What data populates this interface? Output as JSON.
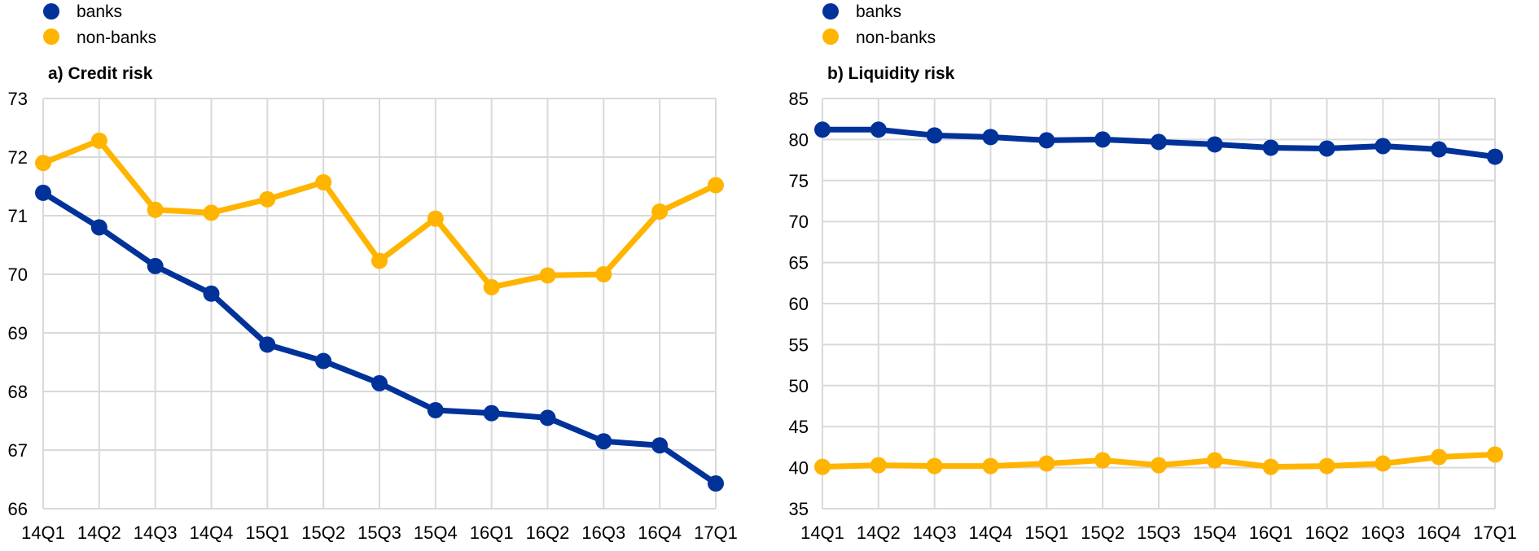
{
  "colors": {
    "banks": "#003299",
    "non_banks": "#FFB400",
    "grid": "#d9d9d9"
  },
  "chart_data": [
    {
      "type": "line",
      "title": "a) Credit risk",
      "xlabel": "",
      "ylabel": "",
      "categories": [
        "14Q1",
        "14Q2",
        "14Q3",
        "14Q4",
        "15Q1",
        "15Q2",
        "15Q3",
        "15Q4",
        "16Q1",
        "16Q2",
        "16Q3",
        "16Q4",
        "17Q1"
      ],
      "ylim": [
        66,
        73
      ],
      "yticks": [
        "66",
        "67",
        "68",
        "69",
        "70",
        "71",
        "72",
        "73"
      ],
      "grid": true,
      "legend": [
        "banks",
        "non-banks"
      ],
      "legend_position": "top-left",
      "series": [
        {
          "name": "banks",
          "values": [
            71.39,
            70.8,
            70.14,
            69.67,
            68.8,
            68.52,
            68.14,
            67.68,
            67.63,
            67.55,
            67.15,
            67.08,
            66.43
          ]
        },
        {
          "name": "non-banks",
          "values": [
            71.9,
            72.28,
            71.1,
            71.05,
            71.28,
            71.57,
            70.23,
            70.95,
            69.78,
            69.98,
            70.0,
            71.07,
            71.52
          ]
        }
      ]
    },
    {
      "type": "line",
      "title": "b) Liquidity risk",
      "xlabel": "",
      "ylabel": "",
      "categories": [
        "14Q1",
        "14Q2",
        "14Q3",
        "14Q4",
        "15Q1",
        "15Q2",
        "15Q3",
        "15Q4",
        "16Q1",
        "16Q2",
        "16Q3",
        "16Q4",
        "17Q1"
      ],
      "ylim": [
        35,
        85
      ],
      "yticks": [
        "35",
        "40",
        "45",
        "50",
        "55",
        "60",
        "65",
        "70",
        "75",
        "80",
        "85"
      ],
      "grid": true,
      "legend": [
        "banks",
        "non-banks"
      ],
      "legend_position": "top-left",
      "series": [
        {
          "name": "banks",
          "values": [
            81.2,
            81.2,
            80.5,
            80.3,
            79.9,
            80.0,
            79.7,
            79.4,
            79.0,
            78.9,
            79.2,
            78.8,
            77.9
          ]
        },
        {
          "name": "non-banks",
          "values": [
            40.1,
            40.3,
            40.2,
            40.2,
            40.5,
            40.9,
            40.3,
            40.9,
            40.1,
            40.2,
            40.5,
            41.3,
            41.6
          ]
        }
      ]
    }
  ]
}
